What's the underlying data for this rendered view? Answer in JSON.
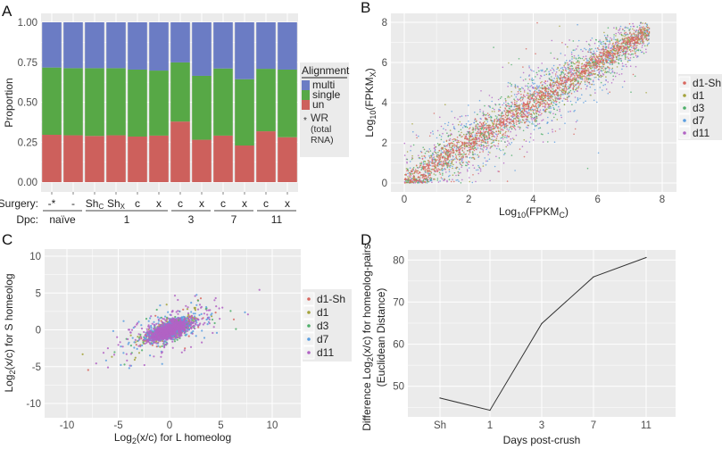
{
  "chart_data": [
    {
      "panel": "A",
      "type": "bar",
      "stacked": true,
      "title": "",
      "xlabel": "",
      "ylabel": "Proportion",
      "ylim": [
        0,
        1
      ],
      "yticks": [
        "0.00",
        "0.25",
        "0.50",
        "0.75",
        "1.00"
      ],
      "categories": [
        "-*",
        "-",
        "Shc",
        "Shx",
        "c",
        "x",
        "c",
        "x",
        "c",
        "x",
        "c",
        "x"
      ],
      "surgery_labels": [
        {
          "main": "-*",
          "sub": ""
        },
        {
          "main": "-",
          "sub": ""
        },
        {
          "main": "Sh",
          "sub": "C"
        },
        {
          "main": "Sh",
          "sub": "X"
        },
        {
          "main": "c",
          "sub": ""
        },
        {
          "main": "x",
          "sub": ""
        },
        {
          "main": "c",
          "sub": ""
        },
        {
          "main": "x",
          "sub": ""
        },
        {
          "main": "c",
          "sub": ""
        },
        {
          "main": "x",
          "sub": ""
        },
        {
          "main": "c",
          "sub": ""
        },
        {
          "main": "x",
          "sub": ""
        }
      ],
      "row_labels": {
        "surgery": "Surgery:",
        "dpc": "Dpc:"
      },
      "dpc_groups": [
        {
          "label": "naïve",
          "start": 0,
          "end": 1
        },
        {
          "label": "1",
          "start": 2,
          "end": 5
        },
        {
          "label": "3",
          "start": 6,
          "end": 7
        },
        {
          "label": "7",
          "start": 8,
          "end": 9
        },
        {
          "label": "11",
          "start": 10,
          "end": 11
        }
      ],
      "series": [
        {
          "name": "un",
          "color": "#cd605c",
          "values": [
            0.296,
            0.293,
            0.289,
            0.293,
            0.285,
            0.291,
            0.379,
            0.265,
            0.291,
            0.229,
            0.318,
            0.281
          ]
        },
        {
          "name": "single",
          "color": "#57a846",
          "values": [
            0.421,
            0.42,
            0.424,
            0.42,
            0.419,
            0.407,
            0.37,
            0.4,
            0.42,
            0.415,
            0.391,
            0.423
          ]
        },
        {
          "name": "multi",
          "color": "#6b7cc4",
          "values": [
            0.283,
            0.287,
            0.287,
            0.287,
            0.296,
            0.302,
            0.251,
            0.335,
            0.289,
            0.356,
            0.291,
            0.296
          ]
        }
      ],
      "legend": {
        "title": "Alignment",
        "placement": "right",
        "entries": [
          "multi",
          "single",
          "un"
        ],
        "note_star": "*",
        "note_lines": [
          "WR",
          "(total",
          "RNA)"
        ]
      }
    },
    {
      "panel": "B",
      "type": "scatter",
      "xlabel": {
        "base": "Log",
        "sub": "10",
        "rest": "(FPKM",
        "sub2": "C",
        "close": ")"
      },
      "ylabel": {
        "base": "Log",
        "sub": "10",
        "rest": "(FPKM",
        "sub2": "X",
        "close": ")"
      },
      "xlim": [
        -0.4,
        8.3
      ],
      "ylim": [
        -0.3,
        8.3
      ],
      "xticks": [
        "0",
        "2",
        "4",
        "6",
        "8"
      ],
      "yticks": [
        "0",
        "2",
        "4",
        "6",
        "8"
      ],
      "grid": true,
      "description": "Dense cloud along y = x from 0 to ~7.5; d1-Sh tightest, d7/d11 widest spread",
      "series": [
        {
          "name": "d1-Sh",
          "color": "#d9675f",
          "spread": 0.35
        },
        {
          "name": "d1",
          "color": "#a3a23a",
          "spread": 0.5
        },
        {
          "name": "d3",
          "color": "#4faf6a",
          "spread": 0.7
        },
        {
          "name": "d7",
          "color": "#5b9ee0",
          "spread": 0.9
        },
        {
          "name": "d11",
          "color": "#b163c4",
          "spread": 0.9
        }
      ],
      "legend": {
        "placement": "right",
        "entries": [
          "d1-Sh",
          "d1",
          "d3",
          "d7",
          "d11"
        ]
      }
    },
    {
      "panel": "C",
      "type": "scatter",
      "xlabel": {
        "base": "Log",
        "sub": "2",
        "rest": "(x/c) for L homeolog"
      },
      "ylabel": {
        "base": "Log",
        "sub": "2",
        "rest": "(x/c) for S homeolog"
      },
      "xlim": [
        -11.5,
        12.5
      ],
      "ylim": [
        -11.5,
        10.7
      ],
      "xticks": [
        "-10",
        "-5",
        "0",
        "5",
        "10"
      ],
      "yticks": [
        "-10",
        "-5",
        "0",
        "5",
        "10"
      ],
      "grid": true,
      "description": "Elliptical cloud centered at (0,0), positively correlated, most points within ±3",
      "series": [
        {
          "name": "d1-Sh",
          "color": "#d9675f"
        },
        {
          "name": "d1",
          "color": "#a3a23a"
        },
        {
          "name": "d3",
          "color": "#4faf6a"
        },
        {
          "name": "d7",
          "color": "#5b9ee0"
        },
        {
          "name": "d11",
          "color": "#b163c4"
        }
      ],
      "legend": {
        "placement": "right",
        "entries": [
          "d1-Sh",
          "d1",
          "d3",
          "d7",
          "d11"
        ]
      }
    },
    {
      "panel": "D",
      "type": "line",
      "xlabel": "Days post-crush",
      "ylabel_line1": {
        "base": "Difference Log",
        "sub": "2",
        "rest": "(x/c) for homeolog-pairs"
      },
      "ylabel_line2": "(Euclidean Distance)",
      "categories": [
        "Sh",
        "1",
        "3",
        "7",
        "11"
      ],
      "values": [
        47.2,
        44.3,
        64.9,
        76.0,
        80.6
      ],
      "ylim": [
        42.5,
        82.5
      ],
      "yticks": [
        "50",
        "60",
        "70",
        "80"
      ],
      "grid": true,
      "line_color": "#333333"
    }
  ],
  "panel_labels": [
    "A",
    "B",
    "C",
    "D"
  ],
  "colors": {
    "panel_bg": "#ebebeb",
    "grid": "#ffffff",
    "legend_bg": "#ebebeb"
  }
}
